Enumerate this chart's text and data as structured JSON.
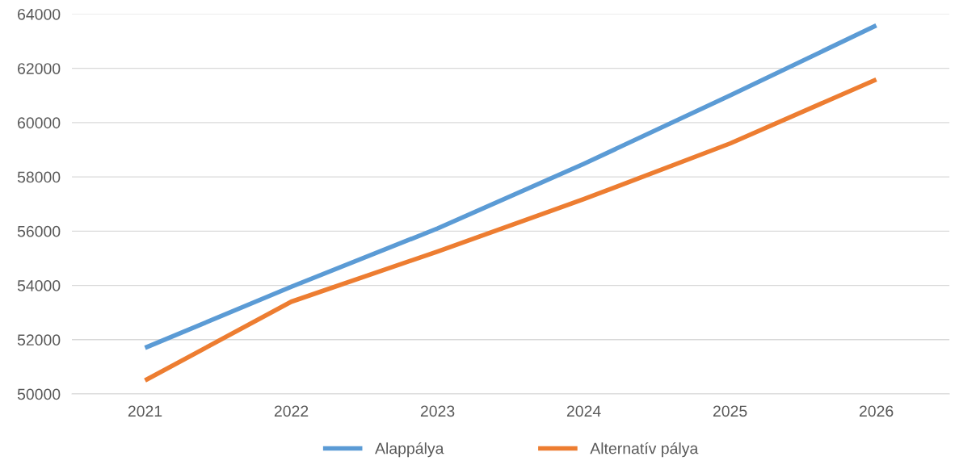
{
  "chart_data": {
    "type": "line",
    "categories": [
      "2021",
      "2022",
      "2023",
      "2024",
      "2025",
      "2026"
    ],
    "series": [
      {
        "name": "Alappálya",
        "color": "#5b9bd5",
        "values": [
          51700,
          53950,
          56100,
          58480,
          61000,
          63580
        ]
      },
      {
        "name": "Alternatív pálya",
        "color": "#ed7d31",
        "values": [
          50500,
          53400,
          55250,
          57180,
          59230,
          61590
        ]
      }
    ],
    "ylim": [
      50000,
      64000
    ],
    "yticks": [
      50000,
      52000,
      54000,
      56000,
      58000,
      60000,
      62000,
      64000
    ],
    "grid": "y",
    "legend": "bottom",
    "marker": "none",
    "line_style": "solid"
  }
}
